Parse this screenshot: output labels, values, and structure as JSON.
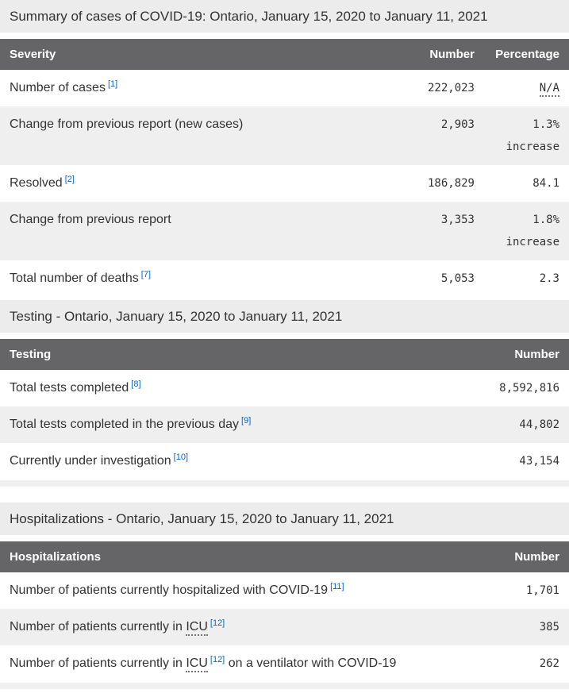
{
  "colors": {
    "header_bg": "#656567",
    "header_text": "#ffffff",
    "section_title_bg": "#ececec",
    "row_stripe_bg": "#efefef",
    "text": "#333333",
    "footnote_link": "#0066cc"
  },
  "sections": [
    {
      "title": "Summary of cases of COVID-19: Ontario, January 15, 2020 to January 11, 2021",
      "columns": [
        {
          "label": "Severity",
          "align": "left"
        },
        {
          "label": "Number",
          "align": "right"
        },
        {
          "label": "Percentage",
          "align": "right"
        }
      ],
      "rows": [
        {
          "label_segments": [
            {
              "type": "text",
              "text": "Number of cases"
            },
            {
              "type": "footnote",
              "text": "[1]"
            }
          ],
          "number": "222,023",
          "percentage": [
            {
              "text": "N/A",
              "abbr": true
            }
          ]
        },
        {
          "label_segments": [
            {
              "type": "text",
              "text": "Change from previous report (new cases)"
            }
          ],
          "number": "2,903",
          "percentage": [
            {
              "text": "1.3%"
            },
            {
              "text": "increase"
            }
          ]
        },
        {
          "label_segments": [
            {
              "type": "text",
              "text": "Resolved"
            },
            {
              "type": "footnote",
              "text": "[2]"
            }
          ],
          "number": "186,829",
          "percentage": [
            {
              "text": "84.1"
            }
          ]
        },
        {
          "label_segments": [
            {
              "type": "text",
              "text": "Change from previous report"
            }
          ],
          "number": "3,353",
          "percentage": [
            {
              "text": "1.8%"
            },
            {
              "text": "increase"
            }
          ]
        },
        {
          "label_segments": [
            {
              "type": "text",
              "text": "Total number of deaths"
            },
            {
              "type": "footnote",
              "text": "[7]"
            }
          ],
          "number": "5,053",
          "percentage": [
            {
              "text": "2.3"
            }
          ]
        }
      ]
    },
    {
      "title": "Testing - Ontario, January 15, 2020 to January 11, 2021",
      "columns": [
        {
          "label": "Testing",
          "align": "left"
        },
        {
          "label": "Number",
          "align": "right"
        }
      ],
      "rows": [
        {
          "label_segments": [
            {
              "type": "text",
              "text": "Total tests completed"
            },
            {
              "type": "footnote",
              "text": "[8]"
            }
          ],
          "number": "8,592,816"
        },
        {
          "label_segments": [
            {
              "type": "text",
              "text": "Total tests completed in the previous day"
            },
            {
              "type": "footnote",
              "text": "[9]"
            }
          ],
          "number": "44,802"
        },
        {
          "label_segments": [
            {
              "type": "text",
              "text": "Currently under investigation"
            },
            {
              "type": "footnote",
              "text": "[10]"
            }
          ],
          "number": "43,154"
        }
      ]
    },
    {
      "title": "Hospitalizations - Ontario, January 15, 2020 to January 11, 2021",
      "columns": [
        {
          "label": "Hospitalizations",
          "align": "left"
        },
        {
          "label": "Number",
          "align": "right"
        }
      ],
      "rows": [
        {
          "label_segments": [
            {
              "type": "text",
              "text": "Number of patients currently hospitalized with COVID-19"
            },
            {
              "type": "footnote",
              "text": "[11]"
            }
          ],
          "number": "1,701"
        },
        {
          "label_segments": [
            {
              "type": "text",
              "text": "Number of patients currently in "
            },
            {
              "type": "abbr",
              "text": "ICU"
            },
            {
              "type": "footnote",
              "text": "[12]"
            }
          ],
          "number": "385"
        },
        {
          "label_segments": [
            {
              "type": "text",
              "text": "Number of patients currently in "
            },
            {
              "type": "abbr",
              "text": "ICU"
            },
            {
              "type": "footnote",
              "text": "[12]"
            },
            {
              "type": "text",
              "text": " on a ventilator with COVID-19"
            }
          ],
          "number": "262"
        }
      ]
    }
  ]
}
